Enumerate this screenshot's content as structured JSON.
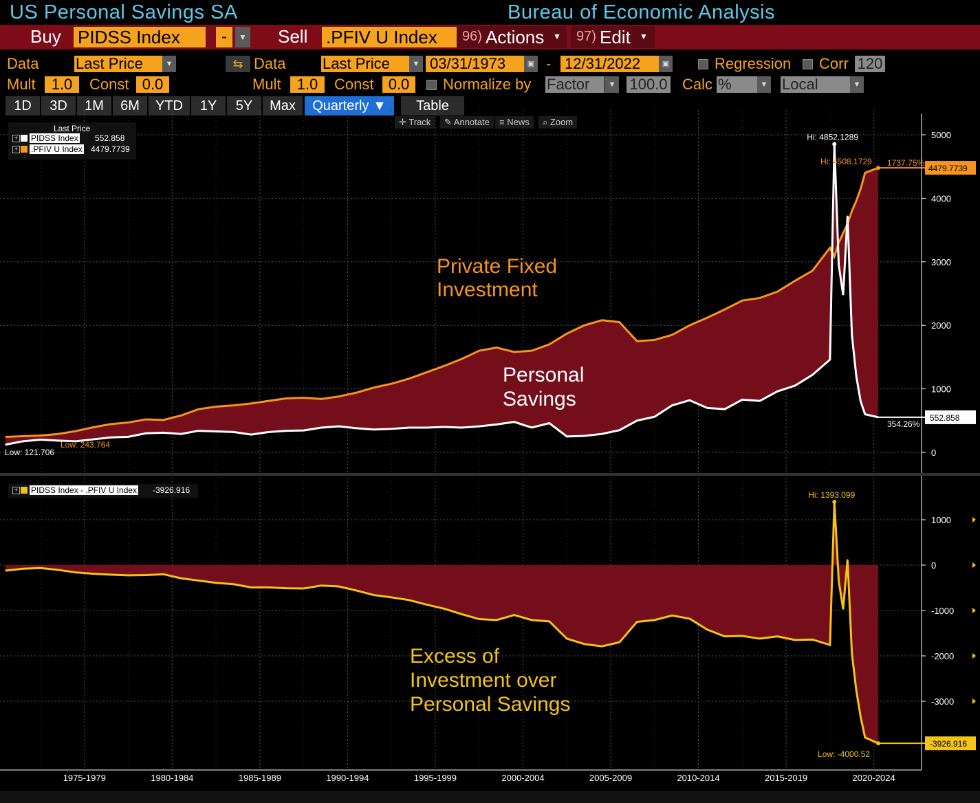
{
  "header": {
    "title_left": "US Personal Savings SA",
    "title_right": "Bureau of Economic Analysis"
  },
  "command_bar": {
    "buy_label": "Buy",
    "buy_ticker": "PIDSS Index",
    "dash": "-",
    "sell_label": "Sell",
    "sell_ticker": ".PFIV U Index",
    "actions_num": "96)",
    "actions_label": "Actions",
    "edit_num": "97)",
    "edit_label": "Edit"
  },
  "settings": {
    "data_label": "Data",
    "data1_value": "Last Price",
    "data2_label": "Data",
    "data2_value": "Last Price",
    "start_date": "03/31/1973",
    "date_sep": "-",
    "end_date": "12/31/2022",
    "regression_label": "Regression",
    "corr_label": "Corr",
    "corr_value": "120",
    "mult_label": "Mult",
    "mult1_value": "1.0",
    "const_label": "Const",
    "const1_value": "0.0",
    "mult2_label": "Mult",
    "mult2_value": "1.0",
    "const2_label": "Const",
    "const2_value": "0.0",
    "normalize_label": "Normalize by",
    "normalize_value": "Factor",
    "normalize_num": "100.0",
    "calc_label": "Calc",
    "calc_value": "%",
    "local_value": "Local"
  },
  "tabs": [
    "1D",
    "3D",
    "1M",
    "6M",
    "YTD",
    "1Y",
    "5Y",
    "Max",
    "Quarterly ▼",
    "Table"
  ],
  "tools": [
    "Track",
    "Annotate",
    "News",
    "Zoom"
  ],
  "legend_top": {
    "header": "Last Price",
    "items": [
      {
        "name": "PIDSS Index",
        "value": "552.858"
      },
      {
        "name": ".PFIV U Index",
        "value": "4479.7739"
      }
    ]
  },
  "legend_bottom": {
    "name": "PIDSS Index - .PFIV U Index",
    "value": "-3926.916"
  },
  "annotations": {
    "top_hi_white": "Hi: 4852.1289",
    "top_hi_orange": "Hi: 4508.1729",
    "top_pct_orange": "1737.75%",
    "top_last_orange": "4479.7739",
    "top_pct_white": "354.26%",
    "top_last_white": "552.858",
    "top_low_white": "Low: 121.706",
    "top_low_orange": "Low: 243.764",
    "label_investment_1": "Private Fixed",
    "label_investment_2": "Investment",
    "label_savings_1": "Personal",
    "label_savings_2": "Savings",
    "bot_hi": "Hi: 1393.099",
    "bot_low": "Low: -4000.52",
    "bot_last": "-3926.916",
    "label_excess_1": "Excess of",
    "label_excess_2": "Investment over",
    "label_excess_3": "Personal Savings"
  },
  "colors": {
    "orange": "#f7941d",
    "white": "#ffffff",
    "yellow": "#f2c318",
    "fill": "#7a0f1c",
    "accent_blue": "#5ec8e8"
  },
  "chart_data": [
    {
      "type": "line",
      "title": "US Personal Savings SA",
      "x": [
        1973,
        1974,
        1975,
        1976,
        1977,
        1978,
        1979,
        1980,
        1981,
        1982,
        1983,
        1984,
        1985,
        1986,
        1987,
        1988,
        1989,
        1990,
        1991,
        1992,
        1993,
        1994,
        1995,
        1996,
        1997,
        1998,
        1999,
        2000,
        2001,
        2002,
        2003,
        2004,
        2005,
        2006,
        2007,
        2008,
        2009,
        2010,
        2011,
        2012,
        2013,
        2014,
        2015,
        2016,
        2017,
        2018,
        2019,
        2020.0,
        2020.25,
        2020.5,
        2020.75,
        2021.0,
        2021.25,
        2021.5,
        2021.75,
        2022.0,
        2022.75
      ],
      "series": [
        {
          "name": ".PFIV U Index",
          "color": "#f7941d",
          "values": [
            243.8,
            255,
            265,
            290,
            335,
            395,
            445,
            470,
            520,
            510,
            580,
            680,
            720,
            740,
            770,
            810,
            850,
            860,
            840,
            880,
            940,
            1020,
            1080,
            1160,
            1260,
            1360,
            1470,
            1600,
            1650,
            1580,
            1600,
            1700,
            1870,
            2000,
            2080,
            2050,
            1750,
            1770,
            1850,
            2000,
            2120,
            2250,
            2390,
            2430,
            2530,
            2700,
            2860,
            3220,
            3080,
            3300,
            3450,
            3600,
            3800,
            3960,
            4150,
            4400,
            4479.77
          ]
        },
        {
          "name": "PIDSS Index",
          "color": "#ffffff",
          "values": [
            121.7,
            175,
            200,
            185,
            175,
            205,
            235,
            245,
            300,
            310,
            290,
            340,
            330,
            320,
            280,
            320,
            340,
            345,
            390,
            410,
            380,
            360,
            370,
            390,
            390,
            400,
            390,
            410,
            440,
            480,
            390,
            460,
            250,
            260,
            290,
            350,
            500,
            560,
            740,
            820,
            700,
            680,
            830,
            810,
            960,
            1050,
            1220,
            1460,
            4852.13,
            2950,
            2480,
            3720,
            1850,
            1200,
            800,
            600,
            552.86
          ]
        }
      ],
      "ylim": [
        -100,
        5200
      ],
      "yticks": [
        0,
        1000,
        2000,
        3000,
        4000,
        5000
      ]
    },
    {
      "type": "area",
      "x": [
        1973,
        1974,
        1975,
        1976,
        1977,
        1978,
        1979,
        1980,
        1981,
        1982,
        1983,
        1984,
        1985,
        1986,
        1987,
        1988,
        1989,
        1990,
        1991,
        1992,
        1993,
        1994,
        1995,
        1996,
        1997,
        1998,
        1999,
        2000,
        2001,
        2002,
        2003,
        2004,
        2005,
        2006,
        2007,
        2008,
        2009,
        2010,
        2011,
        2012,
        2013,
        2014,
        2015,
        2016,
        2017,
        2018,
        2019,
        2020.0,
        2020.25,
        2020.5,
        2020.75,
        2021.0,
        2021.25,
        2021.5,
        2021.75,
        2022.0,
        2022.75
      ],
      "series": [
        {
          "name": "PIDSS Index - .PFIV U Index",
          "color": "#f2c318",
          "values": [
            -122,
            -80,
            -65,
            -105,
            -160,
            -190,
            -210,
            -225,
            -220,
            -200,
            -290,
            -340,
            -390,
            -420,
            -490,
            -490,
            -510,
            -515,
            -450,
            -470,
            -560,
            -660,
            -710,
            -770,
            -870,
            -960,
            -1080,
            -1190,
            -1210,
            -1100,
            -1210,
            -1240,
            -1620,
            -1740,
            -1790,
            -1700,
            -1250,
            -1210,
            -1110,
            -1180,
            -1420,
            -1570,
            -1560,
            -1620,
            -1570,
            -1650,
            -1640,
            -1760,
            1393.1,
            -350,
            -970,
            120,
            -1950,
            -2760,
            -3350,
            -3800,
            -3926.92
          ]
        }
      ],
      "ylim": [
        -4400,
        1800
      ],
      "yticks": [
        1000,
        0,
        -1000,
        -2000,
        -3000
      ]
    }
  ],
  "x_axis": {
    "tick_labels": [
      "1975-1979",
      "1980-1984",
      "1985-1989",
      "1990-1994",
      "1995-1999",
      "2000-2004",
      "2005-2009",
      "2010-2014",
      "2015-2019",
      "2020-2024"
    ],
    "tick_centers": [
      1977.5,
      1982.5,
      1987.5,
      1992.5,
      1997.5,
      2002.5,
      2007.5,
      2012.5,
      2017.5,
      2022.5
    ]
  }
}
